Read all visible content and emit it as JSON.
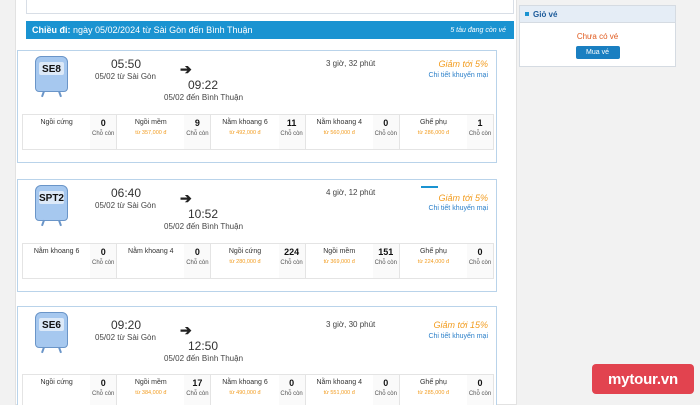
{
  "route": {
    "prefix": "Chiều đi:",
    "text": "ngày 05/02/2024 từ Sài Gòn đến Bình Thuận",
    "count": "5 tàu đang còn vé"
  },
  "trains": [
    {
      "code": "SE8",
      "dep_time": "05:50",
      "dep_place": "05/02 từ Sài Gòn",
      "arr_time": "09:22",
      "arr_place": "05/02 đến Bình Thuận",
      "duration": "3 giờ, 32 phút",
      "discount": "Giảm tới 5%",
      "promo": "Chi tiết khuyến mại",
      "seats": [
        {
          "name": "Ngồi cứng",
          "price": "",
          "count": "0",
          "left": "Chỗ còn"
        },
        {
          "name": "Ngồi mềm",
          "price": "từ 357,000 đ",
          "count": "9",
          "left": "Chỗ còn"
        },
        {
          "name": "Nằm khoang 6",
          "price": "từ 492,000 đ",
          "count": "11",
          "left": "Chỗ còn"
        },
        {
          "name": "Nằm khoang 4",
          "price": "từ 560,000 đ",
          "count": "0",
          "left": "Chỗ còn"
        },
        {
          "name": "Ghế phụ",
          "price": "từ 286,000 đ",
          "count": "1",
          "left": "Chỗ còn"
        }
      ]
    },
    {
      "code": "SPT2",
      "dep_time": "06:40",
      "dep_place": "05/02 từ Sài Gòn",
      "arr_time": "10:52",
      "arr_place": "05/02 đến Bình Thuận",
      "duration": "4 giờ, 12 phút",
      "discount": "Giảm tới 5%",
      "promo": "Chi tiết khuyến mại",
      "seats": [
        {
          "name": "Nằm khoang 6",
          "price": "",
          "count": "0",
          "left": "Chỗ còn"
        },
        {
          "name": "Nằm khoang 4",
          "price": "",
          "count": "0",
          "left": "Chỗ còn"
        },
        {
          "name": "Ngồi cứng",
          "price": "từ 280,000 đ",
          "count": "224",
          "left": "Chỗ còn"
        },
        {
          "name": "Ngồi mềm",
          "price": "từ 369,000 đ",
          "count": "151",
          "left": "Chỗ còn"
        },
        {
          "name": "Ghế phụ",
          "price": "từ 224,000 đ",
          "count": "0",
          "left": "Chỗ còn"
        }
      ]
    },
    {
      "code": "SE6",
      "dep_time": "09:20",
      "dep_place": "05/02 từ Sài Gòn",
      "arr_time": "12:50",
      "arr_place": "05/02 đến Bình Thuận",
      "duration": "3 giờ, 30 phút",
      "discount": "Giảm tới 15%",
      "promo": "Chi tiết khuyến mại",
      "seats": [
        {
          "name": "Ngồi cứng",
          "price": "",
          "count": "0",
          "left": "Chỗ còn"
        },
        {
          "name": "Ngồi mềm",
          "price": "từ 384,000 đ",
          "count": "17",
          "left": "Chỗ còn"
        },
        {
          "name": "Nằm khoang 6",
          "price": "từ 490,000 đ",
          "count": "0",
          "left": "Chỗ còn"
        },
        {
          "name": "Nằm khoang 4",
          "price": "từ 551,000 đ",
          "count": "0",
          "left": "Chỗ còn"
        },
        {
          "name": "Ghế phụ",
          "price": "từ 285,000 đ",
          "count": "0",
          "left": "Chỗ còn"
        }
      ]
    }
  ],
  "cart": {
    "title": "Giỏ vé",
    "empty": "Chưa có vé",
    "buy": "Mua vé"
  },
  "watermark": "mytour.vn",
  "colors": {
    "accent": "#1a93d1",
    "discount": "#f29c1f",
    "watermark": "#e2434f"
  }
}
